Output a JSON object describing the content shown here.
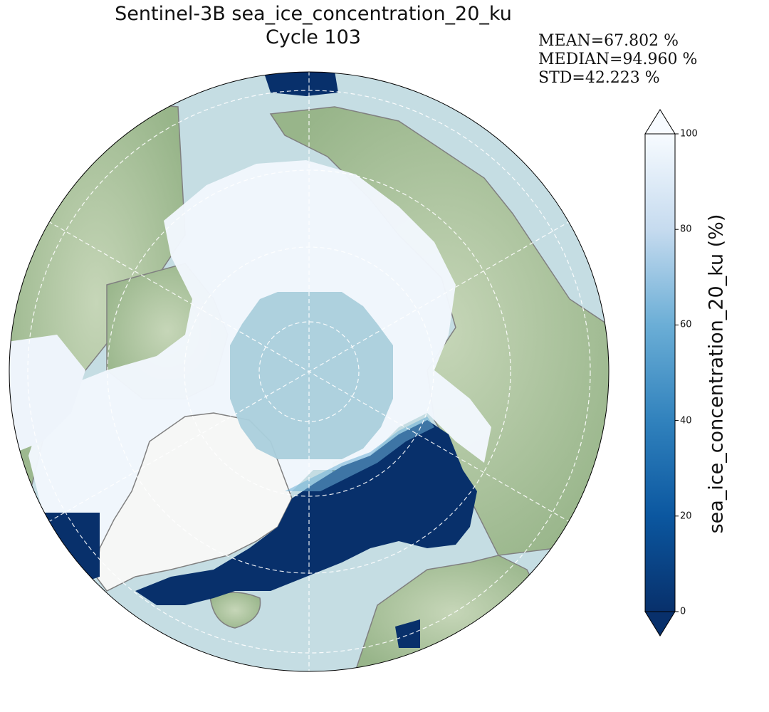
{
  "title": {
    "line1": "Sentinel-3B sea_ice_concentration_20_ku",
    "line2": "Cycle 103"
  },
  "stats": {
    "mean": "MEAN=67.802 %",
    "median": "MEDIAN=94.960 %",
    "std": "STD=42.223 %"
  },
  "colorbar": {
    "label": "sea_ice_concentration_20_ku (%)",
    "ticks": [
      "0",
      "20",
      "40",
      "60",
      "80",
      "100"
    ],
    "min": 0,
    "max": 100,
    "colormap": "Blues_r",
    "extend": "both"
  },
  "map": {
    "projection": "north-polar-stereographic",
    "gridlines": true,
    "colors": {
      "ocean": "#c5dde3",
      "land": "#a9c39c",
      "ice_full": "#f2f7fd",
      "open_water": "#08306b",
      "polar_hole": "#aacfdc",
      "coastline": "#808080"
    }
  }
}
